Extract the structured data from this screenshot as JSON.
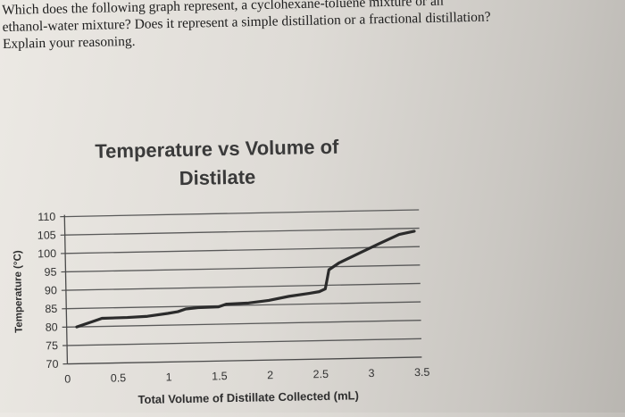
{
  "question": {
    "lines": [
      "Which does the following graph represent, a cyclohexane-toluene mixture or an",
      "ethanol-water mixture? Does it represent a simple distillation or a fractional distillation?",
      "Explain your reasoning."
    ]
  },
  "chart_data": {
    "type": "line",
    "title_lines": [
      "Temperature vs Volume of",
      "Distilate"
    ],
    "xlabel": "Total Volume of Distillate Collected (mL)",
    "ylabel": "Temperature (°C)",
    "xlim": [
      0,
      3.5
    ],
    "ylim": [
      70,
      110
    ],
    "x_ticks": [
      "0",
      "0.5",
      "1",
      "1.5",
      "2",
      "2.5",
      "3",
      "3.5"
    ],
    "y_ticks": [
      "110",
      "105",
      "100",
      "95",
      "90",
      "85",
      "80",
      "75",
      "70"
    ],
    "grid": true,
    "series": [
      {
        "line_color": "#2b2b2b",
        "points": [
          [
            0.1,
            80
          ],
          [
            0.25,
            81.3
          ],
          [
            0.35,
            82.2
          ],
          [
            0.6,
            82.3
          ],
          [
            0.8,
            82.5
          ],
          [
            1.0,
            83.2
          ],
          [
            1.1,
            83.6
          ],
          [
            1.18,
            84.3
          ],
          [
            1.3,
            84.6
          ],
          [
            1.5,
            84.7
          ],
          [
            1.58,
            85.4
          ],
          [
            1.8,
            85.6
          ],
          [
            2.0,
            86.2
          ],
          [
            2.2,
            87.2
          ],
          [
            2.4,
            87.9
          ],
          [
            2.5,
            88.3
          ],
          [
            2.56,
            89.0
          ],
          [
            2.58,
            91.5
          ],
          [
            2.6,
            94.2
          ],
          [
            2.7,
            96.0
          ],
          [
            2.9,
            98.5
          ],
          [
            3.1,
            101.0
          ],
          [
            3.3,
            103.4
          ],
          [
            3.45,
            104.2
          ]
        ]
      }
    ]
  }
}
